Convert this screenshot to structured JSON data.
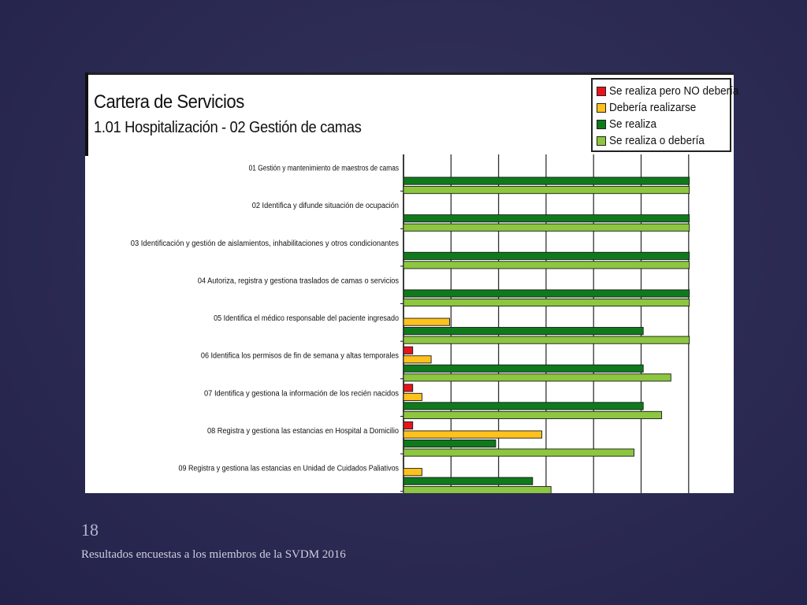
{
  "slide": {
    "page_number": "18",
    "footer": "Resultados encuestas a los miembros de la SVDM 2016"
  },
  "colors": {
    "se_realiza_pero_no_deberia": "#e8141b",
    "deberia_realizarse": "#ffc21c",
    "se_realiza": "#0f7a1b",
    "se_realiza_o_deberia": "#8dc63f",
    "grid": "#333333"
  },
  "chart_data": {
    "type": "bar",
    "orientation": "horizontal",
    "title": "Cartera de Servicios",
    "subtitle": "1.01  Hospitalización - 02 Gestión de camas",
    "xlim": [
      0,
      31
    ],
    "grid": true,
    "legend_position": "top-right",
    "categories": [
      "01 Gestión y mantenimiento de maestros de camas",
      "02 Identifica y difunde situación de ocupación",
      "03 Identificación y gestión de aislamientos, inhabilitaciones y otros condicionantes",
      "04 Autoriza, registra y gestiona traslados de camas o servicios",
      "05 Identifica el médico responsable del paciente ingresado",
      "06 Identifica los permisos de fin de semana y altas temporales",
      "07 Identifica y gestiona la información de los recién nacidos",
      "08 Registra y gestiona las estancias en Hospital a Domicilio",
      "09 Registra y gestiona las estancias en Unidad de Cuidados Paliativos"
    ],
    "series": [
      {
        "name": "Se realiza pero NO debería",
        "color": "#e8141b",
        "values": [
          0,
          0,
          0,
          0,
          0,
          1,
          1,
          1,
          0
        ]
      },
      {
        "name": "Debería realizarse",
        "color": "#ffc21c",
        "values": [
          0,
          0,
          0,
          0,
          5,
          3,
          2,
          15,
          2
        ]
      },
      {
        "name": "Se realiza",
        "color": "#0f7a1b",
        "values": [
          31,
          31,
          31,
          31,
          26,
          26,
          26,
          10,
          14
        ]
      },
      {
        "name": "Se realiza o debería",
        "color": "#8dc63f",
        "values": [
          31,
          31,
          31,
          31,
          31,
          29,
          28,
          25,
          16
        ]
      }
    ]
  }
}
